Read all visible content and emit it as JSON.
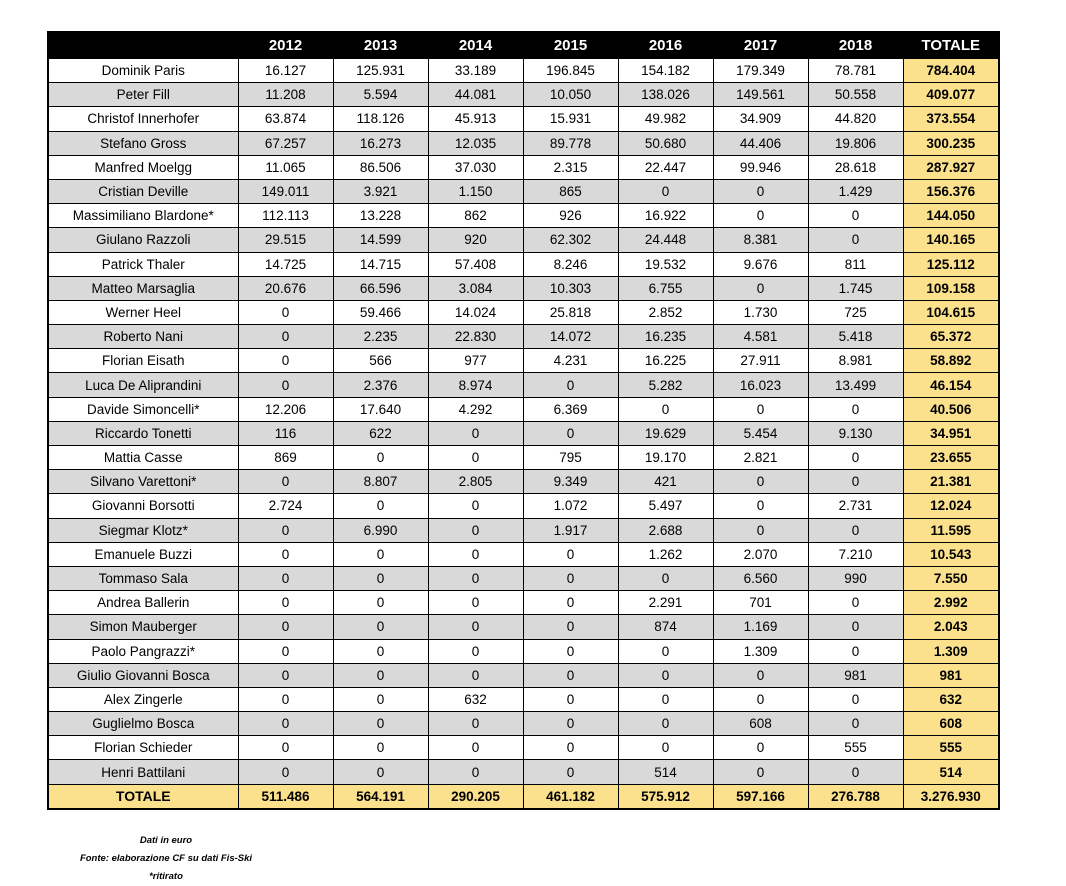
{
  "chart_data": {
    "type": "table",
    "title": "",
    "columns": [
      "2012",
      "2013",
      "2014",
      "2015",
      "2016",
      "2017",
      "2018",
      "TOTALE"
    ],
    "rows": [
      {
        "name": "Dominik Paris",
        "values": [
          "16.127",
          "125.931",
          "33.189",
          "196.845",
          "154.182",
          "179.349",
          "78.781"
        ],
        "total": "784.404"
      },
      {
        "name": "Peter Fill",
        "values": [
          "11.208",
          "5.594",
          "44.081",
          "10.050",
          "138.026",
          "149.561",
          "50.558"
        ],
        "total": "409.077"
      },
      {
        "name": "Christof Innerhofer",
        "values": [
          "63.874",
          "118.126",
          "45.913",
          "15.931",
          "49.982",
          "34.909",
          "44.820"
        ],
        "total": "373.554"
      },
      {
        "name": "Stefano Gross",
        "values": [
          "67.257",
          "16.273",
          "12.035",
          "89.778",
          "50.680",
          "44.406",
          "19.806"
        ],
        "total": "300.235"
      },
      {
        "name": "Manfred Moelgg",
        "values": [
          "11.065",
          "86.506",
          "37.030",
          "2.315",
          "22.447",
          "99.946",
          "28.618"
        ],
        "total": "287.927"
      },
      {
        "name": "Cristian Deville",
        "values": [
          "149.011",
          "3.921",
          "1.150",
          "865",
          "0",
          "0",
          "1.429"
        ],
        "total": "156.376"
      },
      {
        "name": "Massimiliano Blardone*",
        "values": [
          "112.113",
          "13.228",
          "862",
          "926",
          "16.922",
          "0",
          "0"
        ],
        "total": "144.050"
      },
      {
        "name": "Giulano Razzoli",
        "values": [
          "29.515",
          "14.599",
          "920",
          "62.302",
          "24.448",
          "8.381",
          "0"
        ],
        "total": "140.165"
      },
      {
        "name": "Patrick Thaler",
        "values": [
          "14.725",
          "14.715",
          "57.408",
          "8.246",
          "19.532",
          "9.676",
          "811"
        ],
        "total": "125.112"
      },
      {
        "name": "Matteo Marsaglia",
        "values": [
          "20.676",
          "66.596",
          "3.084",
          "10.303",
          "6.755",
          "0",
          "1.745"
        ],
        "total": "109.158"
      },
      {
        "name": "Werner Heel",
        "values": [
          "0",
          "59.466",
          "14.024",
          "25.818",
          "2.852",
          "1.730",
          "725"
        ],
        "total": "104.615"
      },
      {
        "name": "Roberto Nani",
        "values": [
          "0",
          "2.235",
          "22.830",
          "14.072",
          "16.235",
          "4.581",
          "5.418"
        ],
        "total": "65.372"
      },
      {
        "name": "Florian Eisath",
        "values": [
          "0",
          "566",
          "977",
          "4.231",
          "16.225",
          "27.911",
          "8.981"
        ],
        "total": "58.892"
      },
      {
        "name": "Luca De Aliprandini",
        "values": [
          "0",
          "2.376",
          "8.974",
          "0",
          "5.282",
          "16.023",
          "13.499"
        ],
        "total": "46.154"
      },
      {
        "name": "Davide Simoncelli*",
        "values": [
          "12.206",
          "17.640",
          "4.292",
          "6.369",
          "0",
          "0",
          "0"
        ],
        "total": "40.506"
      },
      {
        "name": "Riccardo Tonetti",
        "values": [
          "116",
          "622",
          "0",
          "0",
          "19.629",
          "5.454",
          "9.130"
        ],
        "total": "34.951"
      },
      {
        "name": "Mattia Casse",
        "values": [
          "869",
          "0",
          "0",
          "795",
          "19.170",
          "2.821",
          "0"
        ],
        "total": "23.655"
      },
      {
        "name": "Silvano Varettoni*",
        "values": [
          "0",
          "8.807",
          "2.805",
          "9.349",
          "421",
          "0",
          "0"
        ],
        "total": "21.381"
      },
      {
        "name": "Giovanni Borsotti",
        "values": [
          "2.724",
          "0",
          "0",
          "1.072",
          "5.497",
          "0",
          "2.731"
        ],
        "total": "12.024"
      },
      {
        "name": "Siegmar Klotz*",
        "values": [
          "0",
          "6.990",
          "0",
          "1.917",
          "2.688",
          "0",
          "0"
        ],
        "total": "11.595"
      },
      {
        "name": "Emanuele Buzzi",
        "values": [
          "0",
          "0",
          "0",
          "0",
          "1.262",
          "2.070",
          "7.210"
        ],
        "total": "10.543"
      },
      {
        "name": "Tommaso Sala",
        "values": [
          "0",
          "0",
          "0",
          "0",
          "0",
          "6.560",
          "990"
        ],
        "total": "7.550"
      },
      {
        "name": "Andrea Ballerin",
        "values": [
          "0",
          "0",
          "0",
          "0",
          "2.291",
          "701",
          "0"
        ],
        "total": "2.992"
      },
      {
        "name": "Simon Mauberger",
        "values": [
          "0",
          "0",
          "0",
          "0",
          "874",
          "1.169",
          "0"
        ],
        "total": "2.043"
      },
      {
        "name": "Paolo Pangrazzi*",
        "values": [
          "0",
          "0",
          "0",
          "0",
          "0",
          "1.309",
          "0"
        ],
        "total": "1.309"
      },
      {
        "name": "Giulio Giovanni Bosca",
        "values": [
          "0",
          "0",
          "0",
          "0",
          "0",
          "0",
          "981"
        ],
        "total": "981"
      },
      {
        "name": "Alex Zingerle",
        "values": [
          "0",
          "0",
          "632",
          "0",
          "0",
          "0",
          "0"
        ],
        "total": "632"
      },
      {
        "name": "Guglielmo Bosca",
        "values": [
          "0",
          "0",
          "0",
          "0",
          "0",
          "608",
          "0"
        ],
        "total": "608"
      },
      {
        "name": "Florian Schieder",
        "values": [
          "0",
          "0",
          "0",
          "0",
          "0",
          "0",
          "555"
        ],
        "total": "555"
      },
      {
        "name": "Henri Battilani",
        "values": [
          "0",
          "0",
          "0",
          "0",
          "514",
          "0",
          "0"
        ],
        "total": "514"
      }
    ],
    "totals_row": {
      "label": "TOTALE",
      "values": [
        "511.486",
        "564.191",
        "290.205",
        "461.182",
        "575.912",
        "597.166",
        "276.788"
      ],
      "total": "3.276.930"
    },
    "layout_hints": {
      "zebra_striping": true,
      "first_data_row_bg": "white",
      "totale_column_highlighted": true
    }
  },
  "footnotes": {
    "line1": "Dati in euro",
    "line2": "Fonte: elaborazione CF su dati Fis-Ski",
    "line3": "*ritirato"
  },
  "colors": {
    "header_bg": "#000000",
    "header_text": "#ffffff",
    "alt_row_bg": "#d9d9d9",
    "totale_bg": "#fbe18c",
    "border": "#000000"
  }
}
